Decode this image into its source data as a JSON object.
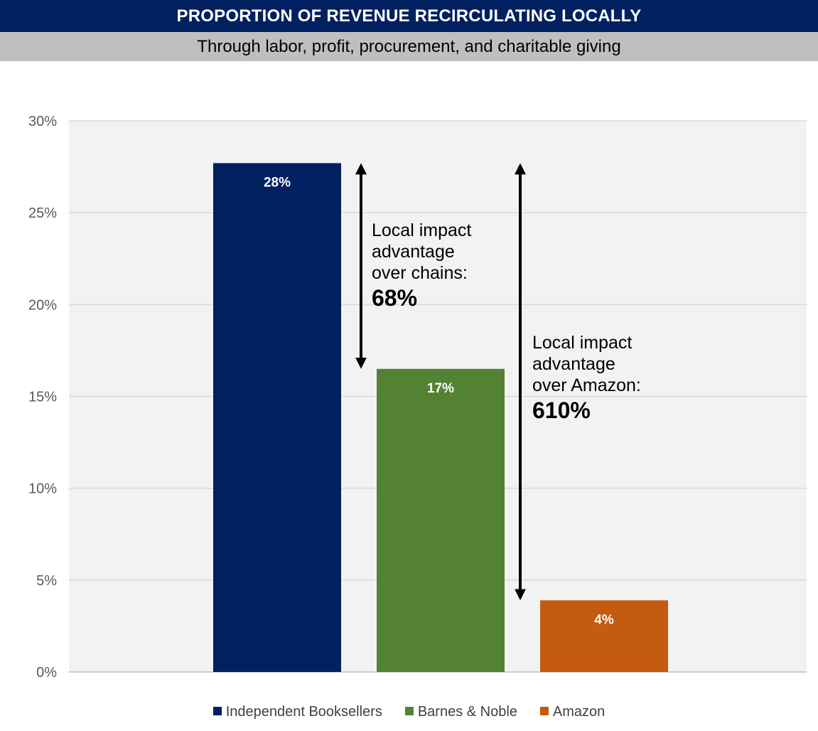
{
  "header": {
    "title": "PROPORTION OF REVENUE RECIRCULATING LOCALLY",
    "subtitle": "Through labor, profit, procurement, and charitable giving"
  },
  "chart_data": {
    "type": "bar",
    "categories": [
      ""
    ],
    "series": [
      {
        "name": "Independent Booksellers",
        "values": [
          27.7
        ],
        "label": "28%",
        "color": "#002060"
      },
      {
        "name": "Barnes & Noble",
        "values": [
          16.5
        ],
        "label": "17%",
        "color": "#548235"
      },
      {
        "name": "Amazon",
        "values": [
          3.9
        ],
        "label": "4%",
        "color": "#c55a11"
      }
    ],
    "ylim": [
      0,
      30
    ],
    "yticks": [
      "0%",
      "5%",
      "10%",
      "15%",
      "20%",
      "25%",
      "30%"
    ],
    "ytick_values": [
      0,
      5,
      10,
      15,
      20,
      25,
      30
    ],
    "grid": true,
    "legend": "bottom",
    "plot_background": "#f2f2f2",
    "annotations": [
      {
        "lines": [
          "Local impact",
          "advantage",
          "over chains:"
        ],
        "value": "68%",
        "from_series": 0,
        "to_series": 1
      },
      {
        "lines": [
          "Local impact",
          "advantage",
          "over Amazon:"
        ],
        "value": "610%",
        "from_series": 0,
        "to_series": 2
      }
    ]
  }
}
